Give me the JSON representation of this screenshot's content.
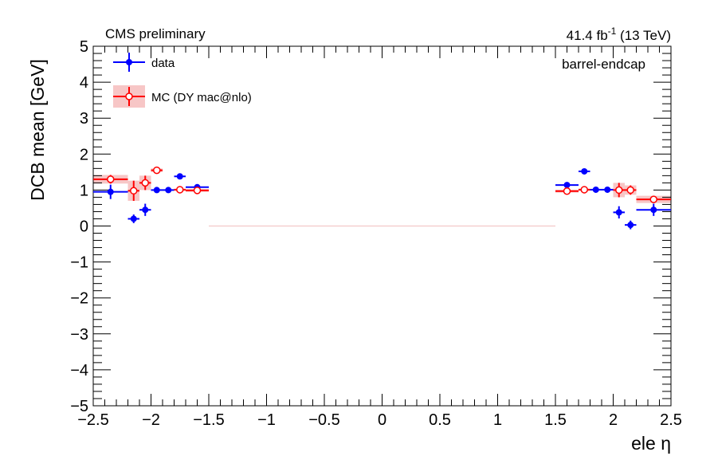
{
  "chart_data": {
    "type": "scatter",
    "title_left": "CMS preliminary",
    "lumi_value": "41.4 fb",
    "lumi_exp": "-1",
    "lumi_energy": " (13 TeV)",
    "category_label": "barrel-endcap",
    "xlabel": "ele η",
    "ylabel": "DCB mean [GeV]",
    "xlim": [
      -2.5,
      2.5
    ],
    "ylim": [
      -5,
      5
    ],
    "x_ticks": [
      -2.5,
      -2,
      -1.5,
      -1,
      -0.5,
      0,
      0.5,
      1,
      1.5,
      2,
      2.5
    ],
    "x_tick_labels": [
      "−2.5",
      "−2",
      "−1.5",
      "−1",
      "−0.5",
      "0",
      "0.5",
      "1",
      "1.5",
      "2",
      "2.5"
    ],
    "y_ticks": [
      -5,
      -4,
      -3,
      -2,
      -1,
      0,
      1,
      2,
      3,
      4,
      5
    ],
    "y_tick_labels": [
      "−5",
      "−4",
      "−3",
      "−2",
      "−1",
      "0",
      "1",
      "2",
      "3",
      "4",
      "5"
    ],
    "legend_position": "top-left",
    "grid": false,
    "reference_line": {
      "x_from": -1.5,
      "x_to": 1.5,
      "y": 0,
      "color": "#f2c9c9"
    },
    "series": [
      {
        "name": "data",
        "color": "#0000ff",
        "marker": "filled-circle",
        "points": [
          {
            "x": -2.35,
            "xerr": 0.15,
            "y": 0.95,
            "yerr": 0.2
          },
          {
            "x": -2.15,
            "xerr": 0.05,
            "y": 0.2,
            "yerr": 0.12
          },
          {
            "x": -2.05,
            "xerr": 0.05,
            "y": 0.45,
            "yerr": 0.17
          },
          {
            "x": -1.95,
            "xerr": 0.05,
            "y": 1.0,
            "yerr": 0.04
          },
          {
            "x": -1.85,
            "xerr": 0.05,
            "y": 1.0,
            "yerr": 0.03
          },
          {
            "x": -1.75,
            "xerr": 0.05,
            "y": 1.38,
            "yerr": 0.05
          },
          {
            "x": -1.6,
            "xerr": 0.1,
            "y": 1.08,
            "yerr": 0.05
          },
          {
            "x": 1.6,
            "xerr": 0.1,
            "y": 1.14,
            "yerr": 0.04
          },
          {
            "x": 1.75,
            "xerr": 0.05,
            "y": 1.52,
            "yerr": 0.05
          },
          {
            "x": 1.85,
            "xerr": 0.05,
            "y": 1.01,
            "yerr": 0.03
          },
          {
            "x": 1.95,
            "xerr": 0.05,
            "y": 1.01,
            "yerr": 0.04
          },
          {
            "x": 2.05,
            "xerr": 0.05,
            "y": 0.38,
            "yerr": 0.17
          },
          {
            "x": 2.15,
            "xerr": 0.05,
            "y": 0.03,
            "yerr": 0.12
          },
          {
            "x": 2.35,
            "xerr": 0.15,
            "y": 0.45,
            "yerr": 0.17
          }
        ]
      },
      {
        "name": "MC (DY mac@nlo)",
        "color": "#ff0000",
        "band_color": "#f7c6c6",
        "marker": "open-circle",
        "points": [
          {
            "x": -2.35,
            "xerr": 0.15,
            "y": 1.3,
            "yerr": 0.12
          },
          {
            "x": -2.15,
            "xerr": 0.05,
            "y": 0.98,
            "yerr": 0.28
          },
          {
            "x": -2.05,
            "xerr": 0.05,
            "y": 1.2,
            "yerr": 0.2
          },
          {
            "x": -1.95,
            "xerr": 0.05,
            "y": 1.55,
            "yerr": 0.05
          },
          {
            "x": -1.75,
            "xerr": 0.05,
            "y": 1.01,
            "yerr": 0.03
          },
          {
            "x": -1.6,
            "xerr": 0.1,
            "y": 0.99,
            "yerr": 0.04
          },
          {
            "x": 1.6,
            "xerr": 0.1,
            "y": 0.97,
            "yerr": 0.04
          },
          {
            "x": 1.75,
            "xerr": 0.05,
            "y": 1.01,
            "yerr": 0.03
          },
          {
            "x": 2.05,
            "xerr": 0.05,
            "y": 1.0,
            "yerr": 0.2
          },
          {
            "x": 2.15,
            "xerr": 0.05,
            "y": 1.0,
            "yerr": 0.13
          },
          {
            "x": 2.35,
            "xerr": 0.15,
            "y": 0.74,
            "yerr": 0.1
          }
        ]
      }
    ]
  }
}
